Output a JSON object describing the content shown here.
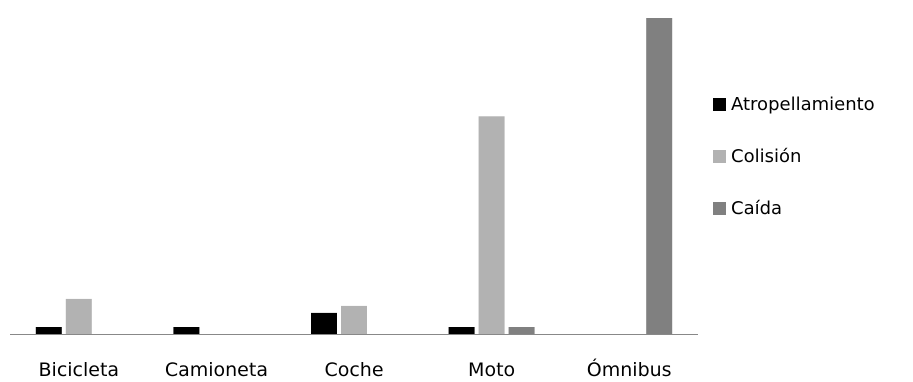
{
  "chart_data": {
    "type": "bar",
    "categories": [
      "Bicicleta",
      "Camioneta",
      "Coche",
      "Moto",
      "Ómnibus"
    ],
    "series": [
      {
        "name": "Atropellamiento",
        "color": "#000000",
        "values": [
          1,
          1,
          3,
          1,
          0
        ]
      },
      {
        "name": "Colisión",
        "color": "#b2b2b2",
        "values": [
          5,
          0,
          4,
          31,
          0
        ]
      },
      {
        "name": "Caída",
        "color": "#808080",
        "values": [
          0,
          0,
          0,
          1,
          45
        ]
      }
    ],
    "ylim": [
      0,
      46
    ],
    "grid": false,
    "legend_position": "right",
    "axis_color": "#888888"
  }
}
